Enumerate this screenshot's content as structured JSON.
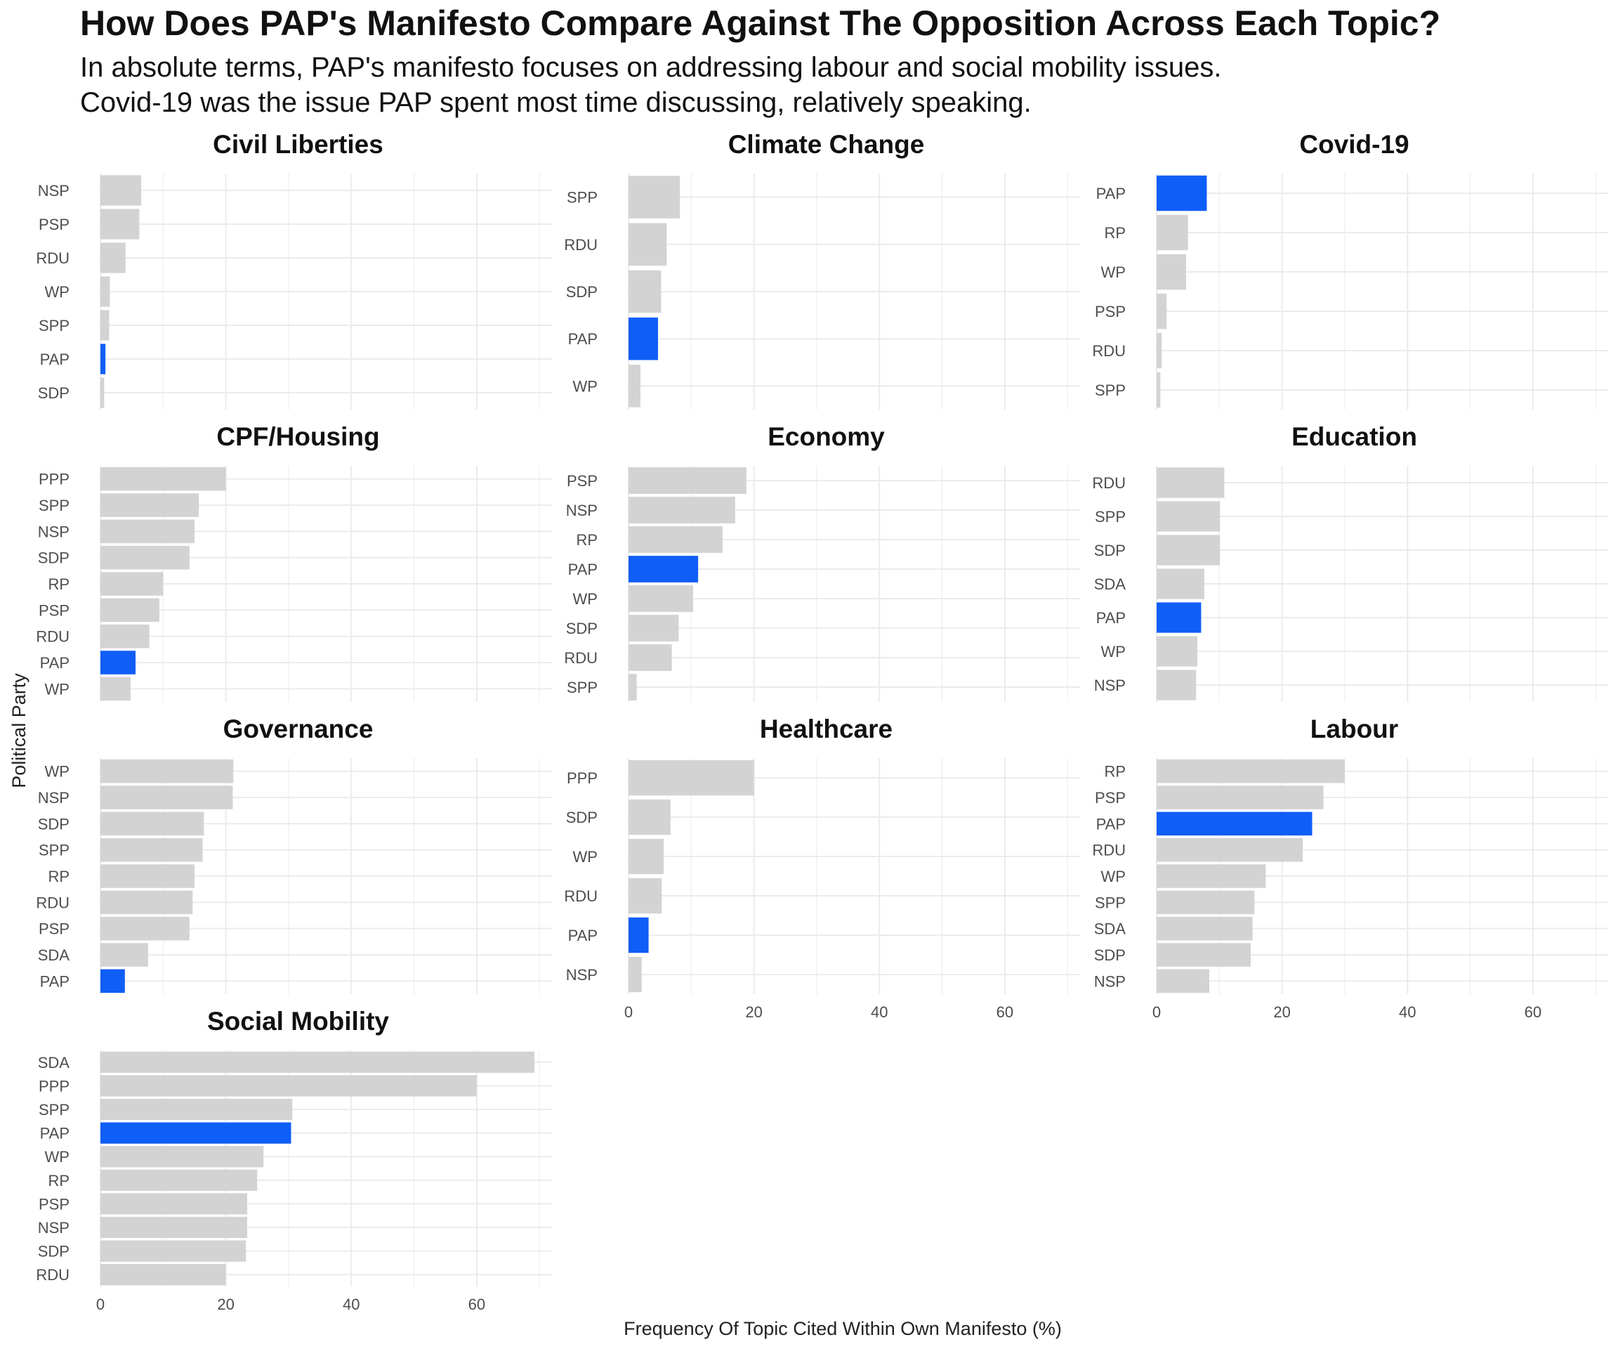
{
  "title": "How Does PAP's Manifesto Compare Against The Opposition Across Each Topic?",
  "subtitle_lines": [
    "In absolute terms, PAP's manifesto focuses on addressing labour and social mobility issues.",
    "Covid-19 was the issue PAP spent most time discussing, relatively speaking."
  ],
  "colors": {
    "highlight": "#0f5ef7",
    "other": "#d3d3d3",
    "grid": "#ebebeb",
    "text": "#4d4d4d"
  },
  "chart_data": {
    "type": "bar",
    "orientation": "horizontal",
    "xlabel": "Frequency Of Topic Cited Within Own Manifesto (%)",
    "ylabel": "Political Party",
    "xlim": [
      0,
      72
    ],
    "x_ticks": [
      0,
      20,
      40,
      60
    ],
    "highlight_party": "PAP",
    "grid": true,
    "facets": [
      {
        "title": "Civil Liberties",
        "categories": [
          "NSP",
          "PSP",
          "RDU",
          "WP",
          "SPP",
          "PAP",
          "SDP"
        ],
        "values": [
          6.5,
          6.2,
          4.0,
          1.5,
          1.4,
          0.8,
          0.6
        ]
      },
      {
        "title": "Climate Change",
        "categories": [
          "SPP",
          "RDU",
          "SDP",
          "PAP",
          "WP"
        ],
        "values": [
          8.2,
          6.1,
          5.2,
          4.7,
          1.9
        ]
      },
      {
        "title": "Covid-19",
        "categories": [
          "PAP",
          "RP",
          "WP",
          "PSP",
          "RDU",
          "SPP"
        ],
        "values": [
          8.0,
          5.0,
          4.7,
          1.6,
          0.8,
          0.6
        ]
      },
      {
        "title": "CPF/Housing",
        "categories": [
          "PPP",
          "SPP",
          "NSP",
          "SDP",
          "RP",
          "PSP",
          "RDU",
          "PAP",
          "WP"
        ],
        "values": [
          20.0,
          15.7,
          15.0,
          14.2,
          10.0,
          9.4,
          7.8,
          5.6,
          4.8
        ]
      },
      {
        "title": "Economy",
        "categories": [
          "PSP",
          "NSP",
          "RP",
          "PAP",
          "WP",
          "SDP",
          "RDU",
          "SPP"
        ],
        "values": [
          18.8,
          17.0,
          15.0,
          11.1,
          10.3,
          8.0,
          6.9,
          1.3
        ]
      },
      {
        "title": "Education",
        "categories": [
          "RDU",
          "SPP",
          "SDP",
          "SDA",
          "PAP",
          "WP",
          "NSP"
        ],
        "values": [
          10.8,
          10.1,
          10.1,
          7.6,
          7.1,
          6.5,
          6.3
        ]
      },
      {
        "title": "Governance",
        "categories": [
          "WP",
          "NSP",
          "SDP",
          "SPP",
          "RP",
          "RDU",
          "PSP",
          "SDA",
          "PAP"
        ],
        "values": [
          21.2,
          21.1,
          16.5,
          16.3,
          15.0,
          14.7,
          14.2,
          7.6,
          3.9
        ]
      },
      {
        "title": "Healthcare",
        "categories": [
          "PPP",
          "SDP",
          "WP",
          "RDU",
          "PAP",
          "NSP"
        ],
        "values": [
          20.0,
          6.7,
          5.6,
          5.3,
          3.2,
          2.1
        ]
      },
      {
        "title": "Labour",
        "categories": [
          "RP",
          "PSP",
          "PAP",
          "RDU",
          "WP",
          "SPP",
          "SDA",
          "SDP",
          "NSP"
        ],
        "values": [
          30.0,
          26.6,
          24.8,
          23.3,
          17.4,
          15.6,
          15.3,
          15.0,
          8.4
        ]
      },
      {
        "title": "Social Mobility",
        "categories": [
          "SDA",
          "PPP",
          "SPP",
          "PAP",
          "WP",
          "RP",
          "PSP",
          "NSP",
          "SDP",
          "RDU"
        ],
        "values": [
          69.2,
          60.0,
          30.6,
          30.4,
          26.0,
          25.0,
          23.4,
          23.4,
          23.2,
          20.0
        ]
      }
    ]
  }
}
